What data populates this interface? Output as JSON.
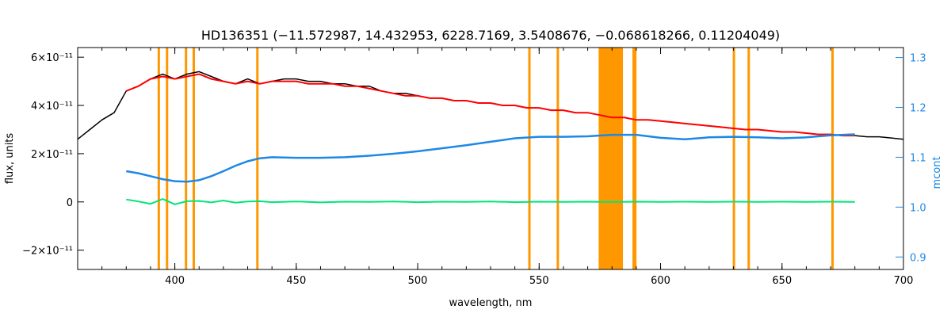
{
  "chart_data": {
    "type": "line",
    "title": "HD136351    (−11.572987, 14.432953, 6228.7169, 3.5408676, −0.068618266, 0.11204049)",
    "xlabel": "wavelength, nm",
    "ylabel": "flux, units",
    "y2label": "mcont",
    "xlim": [
      360,
      700
    ],
    "ylim": [
      -2.8e-11,
      6.4e-11
    ],
    "y2lim": [
      0.875,
      1.32
    ],
    "x_ticks": [
      "400",
      "450",
      "500",
      "550",
      "600",
      "650",
      "700"
    ],
    "y_ticks": [
      {
        "value": -2e-11,
        "label": "−2×10⁻¹¹"
      },
      {
        "value": 0,
        "label": "0"
      },
      {
        "value": 2e-11,
        "label": "2×10⁻¹¹"
      },
      {
        "value": 4e-11,
        "label": "4×10⁻¹¹"
      },
      {
        "value": 6e-11,
        "label": "6×10⁻¹¹"
      }
    ],
    "y2_ticks": [
      "0.9",
      "1.0",
      "1.1",
      "1.2",
      "1.3"
    ],
    "masked_lines_nm": [
      393.4,
      396.8,
      404.6,
      407.8,
      434.0,
      546.0,
      557.7,
      588.9,
      589.6,
      630.2,
      636.3,
      670.8
    ],
    "masked_band_nm": [
      574.5,
      584.5
    ],
    "series": [
      {
        "role": "observed",
        "color": "#000000",
        "x": [
          360,
          365,
          370,
          375,
          380,
          385,
          390,
          395,
          400,
          405,
          410,
          415,
          420,
          425,
          430,
          435,
          440,
          445,
          450,
          455,
          460,
          465,
          470,
          475,
          480,
          485,
          490,
          495,
          500,
          505,
          510,
          515,
          520,
          525,
          530,
          535,
          540,
          545,
          550,
          555,
          560,
          565,
          570,
          575,
          580,
          585,
          590,
          595,
          600,
          605,
          610,
          615,
          620,
          625,
          630,
          635,
          640,
          645,
          650,
          655,
          660,
          665,
          670,
          675,
          680,
          685,
          690,
          695,
          700
        ],
        "y": [
          2.6e-11,
          3e-11,
          3.4e-11,
          3.7e-11,
          4.6e-11,
          4.8e-11,
          5.1e-11,
          5.3e-11,
          5.1e-11,
          5.3e-11,
          5.4e-11,
          5.2e-11,
          5e-11,
          4.9e-11,
          5.1e-11,
          4.9e-11,
          5e-11,
          5.1e-11,
          5.1e-11,
          5e-11,
          5e-11,
          4.9e-11,
          4.9e-11,
          4.8e-11,
          4.8e-11,
          4.6e-11,
          4.5e-11,
          4.5e-11,
          4.4e-11,
          4.3e-11,
          4.3e-11,
          4.2e-11,
          4.2e-11,
          4.1e-11,
          4.1e-11,
          4e-11,
          4e-11,
          3.9e-11,
          3.9e-11,
          3.8e-11,
          3.8e-11,
          3.7e-11,
          3.7e-11,
          3.6e-11,
          3.5e-11,
          3.5e-11,
          3.4e-11,
          3.4e-11,
          3.35e-11,
          3.3e-11,
          3.25e-11,
          3.2e-11,
          3.15e-11,
          3.1e-11,
          3.05e-11,
          3e-11,
          3e-11,
          2.95e-11,
          2.9e-11,
          2.9e-11,
          2.85e-11,
          2.8e-11,
          2.8e-11,
          2.75e-11,
          2.75e-11,
          2.7e-11,
          2.7e-11,
          2.65e-11,
          2.6e-11
        ]
      },
      {
        "role": "model",
        "color": "#ff0000",
        "x": [
          380,
          385,
          390,
          395,
          400,
          405,
          410,
          415,
          420,
          425,
          430,
          435,
          440,
          445,
          450,
          455,
          460,
          465,
          470,
          475,
          480,
          485,
          490,
          495,
          500,
          505,
          510,
          515,
          520,
          525,
          530,
          535,
          540,
          545,
          550,
          555,
          560,
          565,
          570,
          575,
          580,
          585,
          590,
          595,
          600,
          605,
          610,
          615,
          620,
          625,
          630,
          635,
          640,
          645,
          650,
          655,
          660,
          665,
          670,
          675,
          680
        ],
        "y": [
          4.6e-11,
          4.8e-11,
          5.1e-11,
          5.2e-11,
          5.1e-11,
          5.2e-11,
          5.3e-11,
          5.1e-11,
          5e-11,
          4.9e-11,
          5e-11,
          4.9e-11,
          5e-11,
          5e-11,
          5e-11,
          4.9e-11,
          4.9e-11,
          4.9e-11,
          4.8e-11,
          4.8e-11,
          4.7e-11,
          4.6e-11,
          4.5e-11,
          4.4e-11,
          4.4e-11,
          4.3e-11,
          4.3e-11,
          4.2e-11,
          4.2e-11,
          4.1e-11,
          4.1e-11,
          4e-11,
          4e-11,
          3.9e-11,
          3.9e-11,
          3.8e-11,
          3.8e-11,
          3.7e-11,
          3.7e-11,
          3.6e-11,
          3.5e-11,
          3.5e-11,
          3.4e-11,
          3.4e-11,
          3.35e-11,
          3.3e-11,
          3.25e-11,
          3.2e-11,
          3.15e-11,
          3.1e-11,
          3.05e-11,
          3e-11,
          3e-11,
          2.95e-11,
          2.9e-11,
          2.9e-11,
          2.85e-11,
          2.8e-11,
          2.8e-11,
          2.75e-11,
          2.75e-11
        ]
      },
      {
        "role": "continuum",
        "axis": "right",
        "color": "#1e88e5",
        "x": [
          380,
          385,
          390,
          395,
          400,
          405,
          410,
          415,
          420,
          425,
          430,
          435,
          440,
          450,
          460,
          470,
          480,
          490,
          500,
          510,
          520,
          530,
          540,
          550,
          560,
          570,
          580,
          590,
          600,
          610,
          620,
          630,
          640,
          650,
          660,
          670,
          680
        ],
        "y": [
          1.072,
          1.068,
          1.062,
          1.056,
          1.052,
          1.051,
          1.054,
          1.062,
          1.072,
          1.083,
          1.092,
          1.098,
          1.1,
          1.099,
          1.099,
          1.1,
          1.103,
          1.107,
          1.112,
          1.118,
          1.124,
          1.131,
          1.138,
          1.141,
          1.141,
          1.142,
          1.145,
          1.145,
          1.139,
          1.136,
          1.14,
          1.141,
          1.14,
          1.138,
          1.14,
          1.144,
          1.146
        ]
      },
      {
        "role": "residual",
        "color": "#00e676",
        "x": [
          380,
          385,
          390,
          395,
          400,
          405,
          410,
          415,
          420,
          425,
          430,
          435,
          440,
          450,
          460,
          470,
          480,
          490,
          500,
          510,
          520,
          530,
          540,
          550,
          560,
          570,
          575,
          585,
          590,
          600,
          610,
          620,
          630,
          640,
          650,
          660,
          670,
          680
        ],
        "y": [
          1e-12,
          2e-13,
          -8e-13,
          1.2e-12,
          -1e-12,
          3e-13,
          4e-13,
          -2e-13,
          6e-13,
          -3e-13,
          2e-13,
          3e-13,
          -1e-13,
          2e-13,
          -2e-13,
          1e-13,
          0,
          2e-13,
          -1e-13,
          1e-13,
          0,
          2e-13,
          -1e-13,
          1e-13,
          0,
          1e-13,
          0,
          0,
          1e-13,
          0,
          1e-13,
          0,
          1e-13,
          0,
          1e-13,
          0,
          1e-13,
          0
        ]
      }
    ],
    "grid": false,
    "legend": "none"
  }
}
